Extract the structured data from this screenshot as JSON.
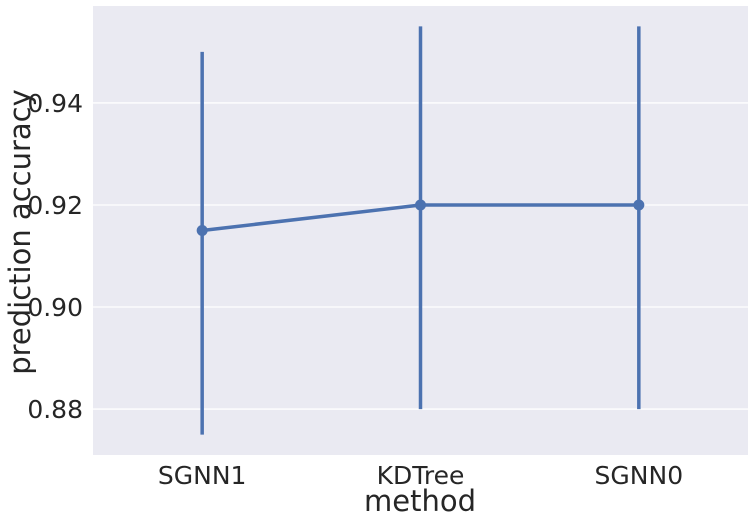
{
  "chart_data": {
    "type": "line",
    "title": "",
    "xlabel": "method",
    "ylabel": "prediction accuracy",
    "categories": [
      "SGNN1",
      "KDTree",
      "SGNN0"
    ],
    "series": [
      {
        "values": [
          0.915,
          0.92,
          0.92
        ],
        "error_low": [
          0.875,
          0.88,
          0.88
        ],
        "error_high": [
          0.95,
          0.955,
          0.955
        ],
        "color": "#4c72b0"
      }
    ],
    "ylim": [
      0.871,
      0.959
    ],
    "yticks": [
      "0.88",
      "0.90",
      "0.92",
      "0.94"
    ],
    "grid": true,
    "legend": "none",
    "background_color": "#eaeaf2",
    "grid_color": "#ffffff"
  }
}
